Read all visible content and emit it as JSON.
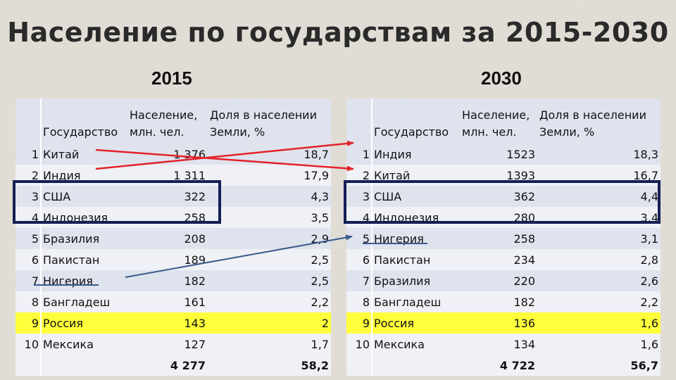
{
  "title": "Население по государствам за 2015-2030",
  "year_left": "2015",
  "year_right": "2030",
  "colors": {
    "highlight": "#ffff3c",
    "box": "#141f55",
    "arrow_red": "#e3222a",
    "arrow_blue": "#3a5b8c"
  },
  "header": {
    "country": "Государство",
    "population_line1": "Население,",
    "population_line2": "млн. чел.",
    "share_line1": "Доля в населении",
    "share_line2": "Земли, %"
  },
  "table_2015": {
    "rows": [
      {
        "n": "1",
        "country": "Китай",
        "pop": "1 376",
        "share": "18,7"
      },
      {
        "n": "2",
        "country": "Индия",
        "pop": "1 311",
        "share": "17,9"
      },
      {
        "n": "3",
        "country": "США",
        "pop": "322",
        "share": "4,3"
      },
      {
        "n": "4",
        "country": "Индонезия",
        "pop": "258",
        "share": "3,5"
      },
      {
        "n": "5",
        "country": "Бразилия",
        "pop": "208",
        "share": "2,9"
      },
      {
        "n": "6",
        "country": "Пакистан",
        "pop": "189",
        "share": "2,5"
      },
      {
        "n": "7",
        "country": "Нигерия",
        "pop": "182",
        "share": "2,5"
      },
      {
        "n": "8",
        "country": "Бангладеш",
        "pop": "161",
        "share": "2,2"
      },
      {
        "n": "9",
        "country": "Россия",
        "pop": "143",
        "share": "2"
      },
      {
        "n": "10",
        "country": "Мексика",
        "pop": "127",
        "share": "1,7"
      }
    ],
    "total_pop": "4 277",
    "total_share": "58,2"
  },
  "table_2030": {
    "rows": [
      {
        "n": "1",
        "country": "Индия",
        "pop": "1523",
        "share": "18,3"
      },
      {
        "n": "2",
        "country": "Китай",
        "pop": "1393",
        "share": "16,7"
      },
      {
        "n": "3",
        "country": "США",
        "pop": "362",
        "share": "4,4"
      },
      {
        "n": "4",
        "country": "Индонезия",
        "pop": "280",
        "share": "3,4"
      },
      {
        "n": "5",
        "country": "Нигерия",
        "pop": "258",
        "share": "3,1"
      },
      {
        "n": "6",
        "country": "Пакистан",
        "pop": "234",
        "share": "2,8"
      },
      {
        "n": "7",
        "country": "Бразилия",
        "pop": "220",
        "share": "2,6"
      },
      {
        "n": "8",
        "country": "Бангладеш",
        "pop": "182",
        "share": "2,2"
      },
      {
        "n": "9",
        "country": "Россия",
        "pop": "136",
        "share": "1,6"
      },
      {
        "n": "10",
        "country": "Мексика",
        "pop": "134",
        "share": "1,6"
      }
    ],
    "total_pop": "4 722",
    "total_share": "56,7"
  }
}
